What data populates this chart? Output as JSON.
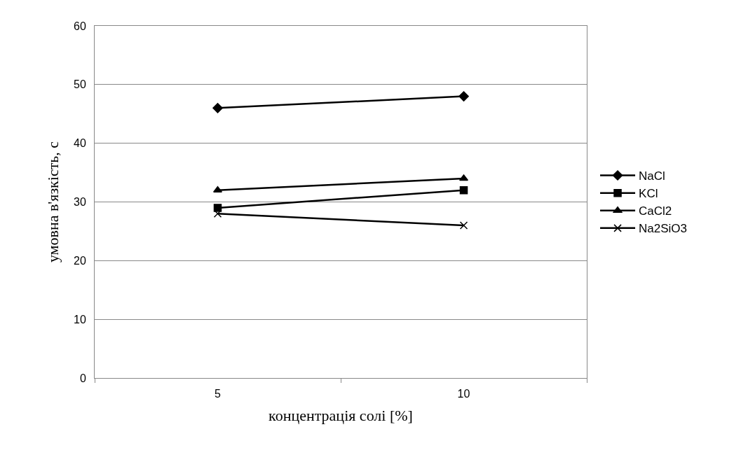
{
  "chart_data": {
    "type": "line",
    "xlabel": "концентрація солі [%]",
    "ylabel": "умовна в'язкість, с",
    "categories": [
      "5",
      "10"
    ],
    "series": [
      {
        "name": "NaCl",
        "color": "#000000",
        "marker": "diamond",
        "values": [
          46,
          48
        ]
      },
      {
        "name": "KCl",
        "color": "#000000",
        "marker": "square",
        "values": [
          29,
          32
        ]
      },
      {
        "name": "CaCl2",
        "color": "#000000",
        "marker": "triangle",
        "values": [
          32,
          34
        ]
      },
      {
        "name": "Na2SiO3",
        "color": "#000000",
        "marker": "cross",
        "values": [
          28,
          26
        ]
      }
    ],
    "ylim": [
      0,
      60
    ],
    "yticks": [
      0,
      10,
      20,
      30,
      40,
      50,
      60
    ],
    "grid": "y",
    "legend": "right",
    "line_style": "solid"
  }
}
